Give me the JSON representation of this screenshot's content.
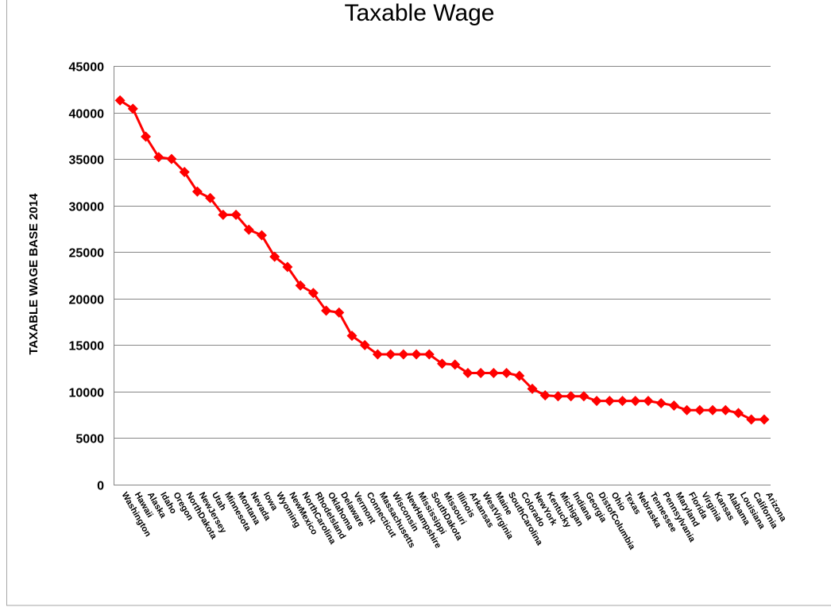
{
  "chart_data": {
    "type": "line",
    "title": "Taxable Wage",
    "xlabel": "",
    "ylabel": "TAXABLE WAGE BASE 2014",
    "ylim": [
      0,
      45000
    ],
    "yticks": [
      0,
      5000,
      10000,
      15000,
      20000,
      25000,
      30000,
      35000,
      40000,
      45000
    ],
    "grid": true,
    "legend": "none",
    "series_color": "#ff0000",
    "marker": "diamond",
    "categories": [
      "Washington",
      "Hawaii",
      "Alaska",
      "Idaho",
      "Oregon",
      "NorthDakota",
      "NewJersey",
      "Utah",
      "Minnesota",
      "Montana",
      "Nevada",
      "Iowa",
      "Wyoming",
      "NewMexico",
      "NorthCarolina",
      "RhodeIsland",
      "Oklahoma",
      "Delaware",
      "Vermont",
      "Connecticut",
      "Massachusetts",
      "Wisconsin",
      "NewHampshire",
      "Mississippi",
      "SouthDakota",
      "Missouri",
      "Illinois",
      "Arkansas",
      "WestVirginia",
      "Maine",
      "SouthCarolina",
      "Colorado",
      "NewYork",
      "Kentucky",
      "Michigan",
      "Indiana",
      "Georgia",
      "DistofColumbia",
      "Ohio",
      "Texas",
      "Nebraska",
      "Tennessee",
      "Pennsylvania",
      "Maryland",
      "Florida",
      "Virginia",
      "Kansas",
      "Alabama",
      "Louisiana",
      "California",
      "Arizona"
    ],
    "values": [
      41300,
      40400,
      37400,
      35200,
      35000,
      33600,
      31500,
      30800,
      29000,
      29000,
      27400,
      26800,
      24500,
      23400,
      21400,
      20600,
      18700,
      18500,
      16000,
      15000,
      14000,
      14000,
      14000,
      14000,
      14000,
      13000,
      12900,
      12000,
      12000,
      12000,
      12000,
      11700,
      10300,
      9600,
      9500,
      9500,
      9500,
      9000,
      9000,
      9000,
      9000,
      9000,
      8750,
      8500,
      8000,
      8000,
      8000,
      8000,
      7700,
      7000,
      7000
    ]
  }
}
